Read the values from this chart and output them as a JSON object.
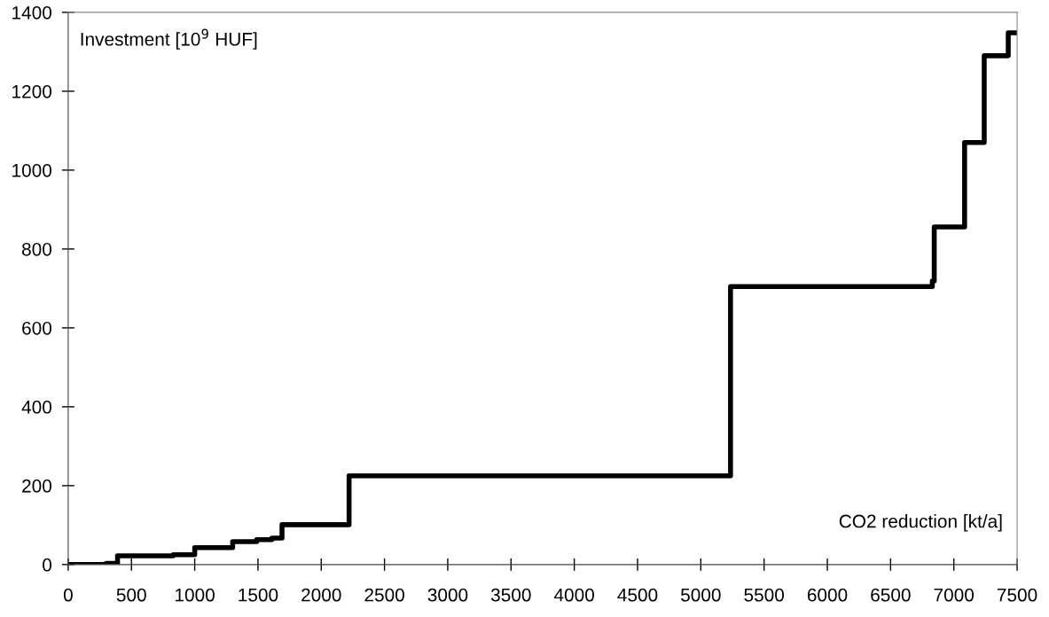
{
  "chart_data": {
    "type": "step",
    "xlabel": "CO2 reduction [kt/a]",
    "ylabel": "Investment [10$^{9}$ HUF]",
    "x": [
      0,
      300,
      390,
      830,
      1000,
      1300,
      1490,
      1610,
      1690,
      2220,
      5235,
      6830,
      6845,
      7085,
      7240,
      7430,
      7500
    ],
    "series": [
      {
        "color": "#000000",
        "values": [
          0,
          3,
          22,
          25,
          43,
          58,
          63,
          67,
          101,
          225,
          705,
          719,
          856,
          1070,
          1290,
          1348,
          1348
        ]
      }
    ],
    "xlim": [
      0,
      7500
    ],
    "xticks": [
      0,
      500,
      1000,
      1500,
      2000,
      2500,
      3000,
      3500,
      4000,
      4500,
      5000,
      5500,
      6000,
      6500,
      7000,
      7500
    ],
    "ylim": [
      0,
      1400
    ],
    "yticks": [
      0,
      200,
      400,
      600,
      800,
      1000,
      1200,
      1400
    ],
    "grid": false,
    "marker": "none",
    "line_style": "solid"
  }
}
